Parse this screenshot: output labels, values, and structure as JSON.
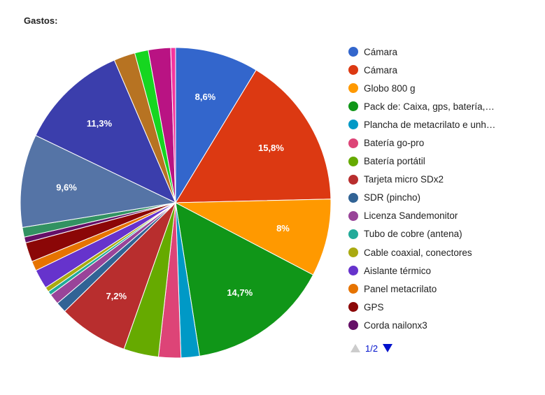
{
  "chart_data": {
    "type": "pie",
    "title": "Gastos:",
    "slices": [
      {
        "name": "Cámara",
        "value": 8.6,
        "label": "8,6%",
        "color": "#3366cc"
      },
      {
        "name": "Cámara",
        "value": 15.8,
        "label": "15,8%",
        "color": "#dc3912"
      },
      {
        "name": "Globo 800 g",
        "value": 8.0,
        "label": "8%",
        "color": "#ff9900"
      },
      {
        "name": "Pack de: Caixa, gps, batería,…",
        "value": 14.7,
        "label": "14,7%",
        "color": "#109618"
      },
      {
        "name": "Plancha de metacrilato e unh…",
        "value": 1.9,
        "label": "",
        "color": "#0099c6"
      },
      {
        "name": "Batería go-pro",
        "value": 2.3,
        "label": "",
        "color": "#dd4477"
      },
      {
        "name": "Batería portátil",
        "value": 3.6,
        "label": "",
        "color": "#66aa00"
      },
      {
        "name": "Tarjeta micro SDx2",
        "value": 7.2,
        "label": "7,2%",
        "color": "#b82e2e"
      },
      {
        "name": "SDR (pincho)",
        "value": 1.1,
        "label": "",
        "color": "#316395"
      },
      {
        "name": "Licenza Sandemonitor",
        "value": 1.1,
        "label": "",
        "color": "#994499"
      },
      {
        "name": "Tubo de cobre (antena)",
        "value": 0.4,
        "label": "",
        "color": "#22aa99"
      },
      {
        "name": "Cable coaxial, conectores",
        "value": 0.5,
        "label": "",
        "color": "#aaaa11"
      },
      {
        "name": "Aislante térmico",
        "value": 2.0,
        "label": "",
        "color": "#6633cc"
      },
      {
        "name": "Panel metacrilato",
        "value": 1.0,
        "label": "",
        "color": "#e67300"
      },
      {
        "name": "GPS",
        "value": 2.0,
        "label": "",
        "color": "#8b0707"
      },
      {
        "name": "Corda nailonx3",
        "value": 0.6,
        "label": "",
        "color": "#651067"
      },
      {
        "name": "",
        "value": 1.0,
        "label": "",
        "color": "#329262"
      },
      {
        "name": "",
        "value": 9.6,
        "label": "9,6%",
        "color": "#5574a6"
      },
      {
        "name": "",
        "value": 11.3,
        "label": "11,3%",
        "color": "#3b3eac"
      },
      {
        "name": "",
        "value": 2.2,
        "label": "",
        "color": "#b77322"
      },
      {
        "name": "",
        "value": 1.4,
        "label": "",
        "color": "#16d620"
      },
      {
        "name": "",
        "value": 2.3,
        "label": "",
        "color": "#b91383"
      },
      {
        "name": "",
        "value": 0.5,
        "label": "",
        "color": "#f4359e"
      }
    ],
    "legend_position": "right"
  },
  "pager": {
    "text": "1/2",
    "prev_icon": "triangle-up-icon",
    "next_icon": "triangle-down-icon",
    "disabled_color": "#cccccc",
    "active_color": "#0011cc"
  }
}
